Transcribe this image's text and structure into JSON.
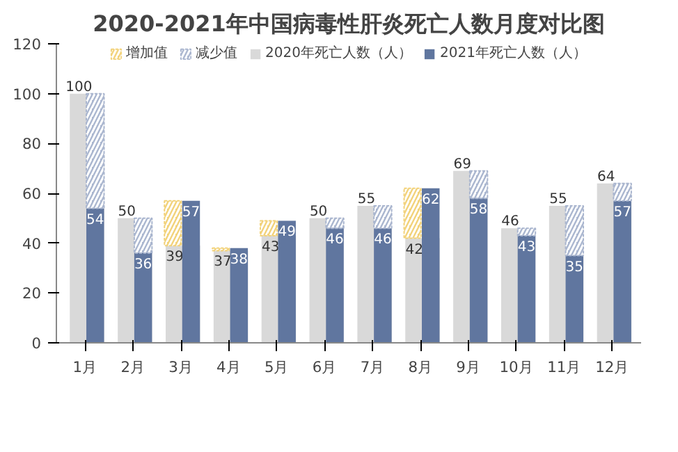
{
  "chart_data": {
    "type": "bar",
    "title": "2020-2021年中国病毒性肝炎死亡人数月度对比图",
    "categories": [
      "1月",
      "2月",
      "3月",
      "4月",
      "5月",
      "6月",
      "7月",
      "8月",
      "9月",
      "10月",
      "11月",
      "12月"
    ],
    "series": [
      {
        "name": "增加值",
        "color": "#f2d27a",
        "values": [
          null,
          null,
          18,
          1,
          6,
          null,
          null,
          20,
          null,
          null,
          null,
          null
        ],
        "base": [
          null,
          null,
          39,
          37,
          43,
          null,
          null,
          42,
          null,
          null,
          null,
          null
        ]
      },
      {
        "name": "减少值",
        "color": "#aab6cf",
        "values": [
          46,
          14,
          null,
          null,
          null,
          4,
          9,
          null,
          11,
          3,
          20,
          7
        ],
        "base": [
          54,
          36,
          null,
          null,
          null,
          46,
          46,
          null,
          58,
          43,
          35,
          57
        ]
      },
      {
        "name": "2020年死亡人数（人）",
        "color": "#d9d9d9",
        "values": [
          100,
          50,
          39,
          37,
          43,
          50,
          55,
          42,
          69,
          46,
          55,
          64
        ],
        "value_labels": [
          "100",
          "50",
          "39",
          "37",
          "43",
          "50",
          "55",
          "42",
          "69",
          "46",
          "55",
          "64"
        ]
      },
      {
        "name": "2021年死亡人数（人）",
        "color": "#60769f",
        "values": [
          54,
          36,
          57,
          38,
          49,
          46,
          46,
          62,
          58,
          43,
          35,
          57
        ],
        "value_labels": [
          "54",
          "36",
          "57",
          "38",
          "49",
          "46",
          "46",
          "62",
          "58",
          "43",
          "35",
          "57"
        ]
      }
    ],
    "ylim": [
      0,
      120
    ],
    "yticks": [
      0,
      20,
      40,
      60,
      80,
      100,
      120
    ],
    "grid": false,
    "legend": "top"
  }
}
